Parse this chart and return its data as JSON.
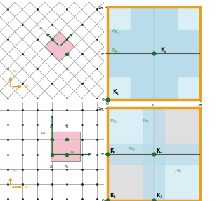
{
  "fig_width": 3.09,
  "fig_height": 2.87,
  "dpi": 100,
  "border_color": "#E8A020",
  "light_blue": "#b8dcea",
  "lighter_blue": "#daeef6",
  "gray": "#c0c0c0",
  "pink": "#f2b8c6",
  "dot_color": "#111111",
  "green_dot": "#1a6e30",
  "green_arrow": "#1a6e30",
  "orange_arrow": "#e8a020",
  "K_label_color": "#111111",
  "P_label_color": "#5aaa6a",
  "two_pi": 6.2832,
  "pi": 3.1416
}
